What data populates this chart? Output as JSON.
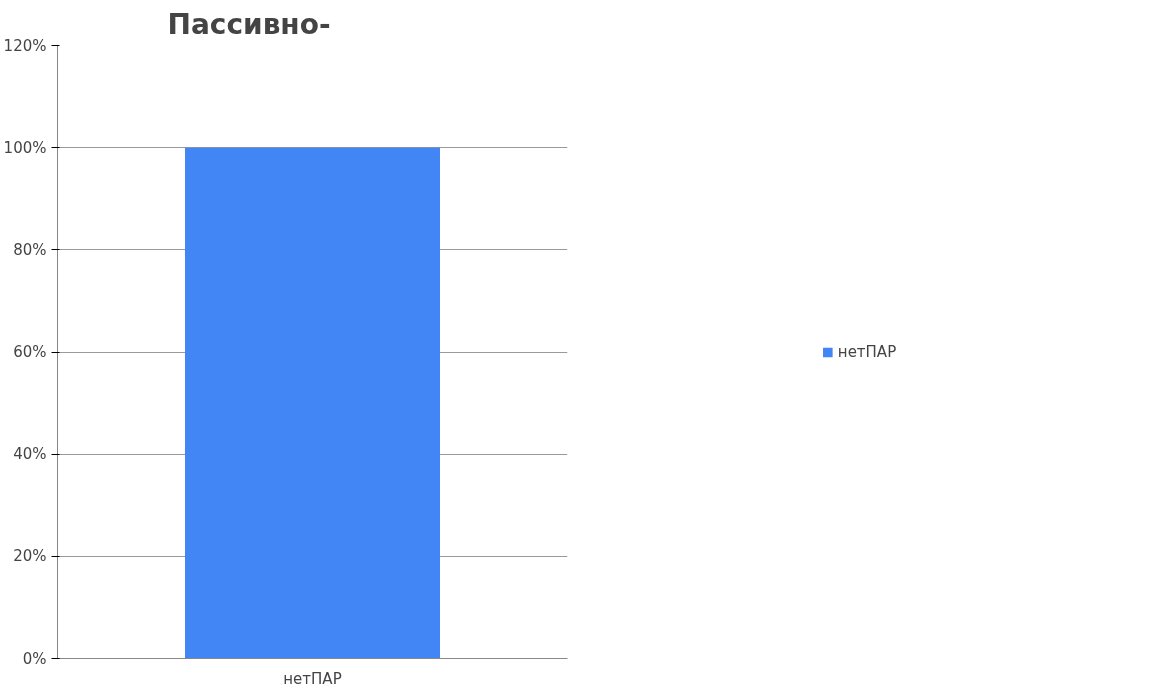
{
  "chart_data": {
    "type": "bar",
    "title": "Пассивно-",
    "categories": [
      "нетПАР"
    ],
    "series": [
      {
        "name": "нетПАР",
        "color": "#4285f4",
        "values": [
          100
        ]
      }
    ],
    "ylim": [
      0,
      120
    ],
    "yticks": [
      {
        "value": 0,
        "label": "0%"
      },
      {
        "value": 20,
        "label": "20%"
      },
      {
        "value": 40,
        "label": "40%"
      },
      {
        "value": 60,
        "label": "60%"
      },
      {
        "value": 80,
        "label": "80%"
      },
      {
        "value": 100,
        "label": "100%"
      },
      {
        "value": 120,
        "label": "120%"
      }
    ],
    "grid": "y",
    "legend": "right"
  }
}
